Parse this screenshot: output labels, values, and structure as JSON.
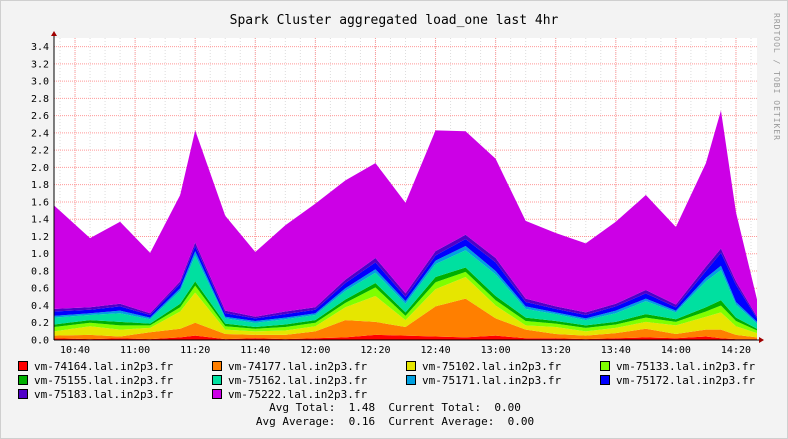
{
  "chart_data": {
    "type": "area",
    "title": "Spark Cluster aggregated load_one last 4hr",
    "watermark": "RRDTOOL / TOBI OETIKER",
    "xlabel": "",
    "ylabel": "",
    "x_ticks": [
      "10:40",
      "11:00",
      "11:20",
      "11:40",
      "12:00",
      "12:20",
      "12:40",
      "13:00",
      "13:20",
      "13:40",
      "14:00",
      "14:20"
    ],
    "y_ticks": [
      "0.0",
      "0.2",
      "0.4",
      "0.6",
      "0.8",
      "1.0",
      "1.2",
      "1.4",
      "1.6",
      "1.8",
      "2.0",
      "2.2",
      "2.4",
      "2.6",
      "2.8",
      "3.0",
      "3.2",
      "3.4"
    ],
    "ylim": [
      0,
      3.5
    ],
    "grid": true,
    "stacked": true,
    "x": [
      "10:33",
      "10:45",
      "10:55",
      "11:05",
      "11:15",
      "11:20",
      "11:30",
      "11:40",
      "11:50",
      "12:00",
      "12:10",
      "12:20",
      "12:30",
      "12:40",
      "12:50",
      "13:00",
      "13:10",
      "13:20",
      "13:30",
      "13:40",
      "13:50",
      "14:00",
      "14:10",
      "14:15",
      "14:20",
      "14:27"
    ],
    "series": [
      {
        "name": "vm-74164.lal.in2p3.fr",
        "color": "#ff0000",
        "values": [
          0.02,
          0.01,
          0.02,
          0.01,
          0.03,
          0.05,
          0.01,
          0.02,
          0.01,
          0.02,
          0.03,
          0.06,
          0.05,
          0.04,
          0.03,
          0.05,
          0.02,
          0.02,
          0.01,
          0.02,
          0.03,
          0.02,
          0.04,
          0.02,
          0.01,
          0.01
        ]
      },
      {
        "name": "vm-74177.lal.in2p3.fr",
        "color": "#ff7f00",
        "values": [
          0.03,
          0.05,
          0.02,
          0.08,
          0.1,
          0.15,
          0.06,
          0.04,
          0.05,
          0.08,
          0.2,
          0.15,
          0.1,
          0.35,
          0.45,
          0.2,
          0.1,
          0.05,
          0.04,
          0.06,
          0.1,
          0.05,
          0.08,
          0.1,
          0.05,
          0.02
        ]
      },
      {
        "name": "vm-75102.lal.in2p3.fr",
        "color": "#e6e600",
        "values": [
          0.05,
          0.1,
          0.08,
          0.05,
          0.2,
          0.35,
          0.05,
          0.04,
          0.05,
          0.06,
          0.15,
          0.3,
          0.08,
          0.2,
          0.25,
          0.15,
          0.05,
          0.08,
          0.05,
          0.06,
          0.08,
          0.1,
          0.15,
          0.2,
          0.1,
          0.05
        ]
      },
      {
        "name": "vm-75133.lal.in2p3.fr",
        "color": "#7fff00",
        "values": [
          0.05,
          0.04,
          0.05,
          0.03,
          0.05,
          0.08,
          0.04,
          0.03,
          0.04,
          0.04,
          0.05,
          0.1,
          0.05,
          0.08,
          0.06,
          0.06,
          0.05,
          0.04,
          0.04,
          0.04,
          0.05,
          0.04,
          0.06,
          0.08,
          0.06,
          0.03
        ]
      },
      {
        "name": "vm-75155.lal.in2p3.fr",
        "color": "#00b000",
        "values": [
          0.03,
          0.03,
          0.04,
          0.02,
          0.04,
          0.05,
          0.03,
          0.02,
          0.03,
          0.03,
          0.04,
          0.05,
          0.04,
          0.06,
          0.05,
          0.05,
          0.04,
          0.03,
          0.03,
          0.03,
          0.04,
          0.03,
          0.05,
          0.06,
          0.04,
          0.02
        ]
      },
      {
        "name": "vm-75162.lal.in2p3.fr",
        "color": "#00e0a0",
        "values": [
          0.08,
          0.06,
          0.1,
          0.05,
          0.15,
          0.3,
          0.06,
          0.05,
          0.06,
          0.06,
          0.1,
          0.12,
          0.1,
          0.15,
          0.2,
          0.25,
          0.1,
          0.08,
          0.06,
          0.1,
          0.15,
          0.08,
          0.3,
          0.35,
          0.15,
          0.06
        ]
      },
      {
        "name": "vm-75171.lal.in2p3.fr",
        "color": "#00a0e0",
        "values": [
          0.02,
          0.02,
          0.03,
          0.02,
          0.03,
          0.05,
          0.02,
          0.02,
          0.02,
          0.02,
          0.03,
          0.04,
          0.03,
          0.04,
          0.05,
          0.04,
          0.03,
          0.02,
          0.02,
          0.03,
          0.03,
          0.02,
          0.04,
          0.05,
          0.03,
          0.02
        ]
      },
      {
        "name": "vm-75172.lal.in2p3.fr",
        "color": "#0000ff",
        "values": [
          0.05,
          0.04,
          0.05,
          0.03,
          0.05,
          0.06,
          0.04,
          0.03,
          0.04,
          0.04,
          0.06,
          0.08,
          0.05,
          0.06,
          0.08,
          0.1,
          0.05,
          0.04,
          0.04,
          0.05,
          0.06,
          0.04,
          0.08,
          0.15,
          0.2,
          0.04
        ]
      },
      {
        "name": "vm-75183.lal.in2p3.fr",
        "color": "#5000c8",
        "values": [
          0.03,
          0.03,
          0.03,
          0.02,
          0.03,
          0.04,
          0.03,
          0.02,
          0.03,
          0.03,
          0.04,
          0.05,
          0.04,
          0.05,
          0.05,
          0.05,
          0.04,
          0.03,
          0.03,
          0.03,
          0.04,
          0.03,
          0.05,
          0.05,
          0.04,
          0.02
        ]
      },
      {
        "name": "vm-75222.lal.in2p3.fr",
        "color": "#cc00e6",
        "values": [
          1.2,
          0.8,
          0.95,
          0.7,
          1.0,
          1.3,
          1.1,
          0.75,
          1.0,
          1.2,
          1.15,
          1.1,
          1.05,
          1.4,
          1.2,
          1.15,
          0.9,
          0.85,
          0.8,
          0.95,
          1.1,
          0.9,
          1.2,
          1.6,
          0.8,
          0.2
        ]
      }
    ]
  },
  "summary": {
    "avg_total_label": "Avg Total:",
    "avg_total_value": "1.48",
    "current_total_label": "Current Total:",
    "current_total_value": "0.00",
    "avg_average_label": "Avg Average:",
    "avg_average_value": "0.16",
    "current_average_label": "Current Average:",
    "current_average_value": "0.00"
  },
  "colors": {
    "background": "#f3f3f3",
    "plot_background": "#ffffff",
    "grid_major": "#ff9999",
    "grid_minor": "#dddddd",
    "axis": "#000000"
  }
}
